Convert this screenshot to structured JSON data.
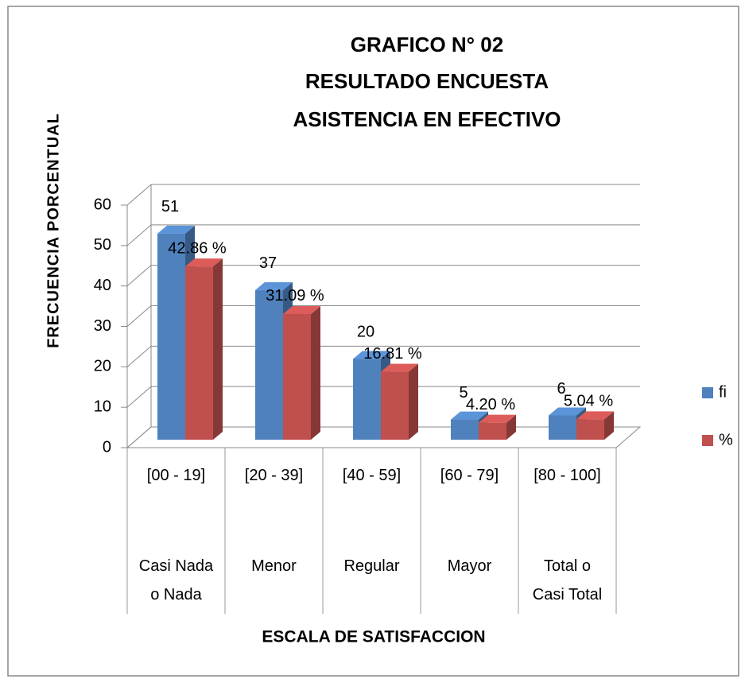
{
  "chart_data": {
    "type": "bar3d",
    "title": [
      "GRAFICO N° 02",
      "RESULTADO ENCUESTA",
      "ASISTENCIA EN EFECTIVO"
    ],
    "y_label": "FRECUENCIA PORCENTUAL",
    "x_label": "ESCALA DE SATISFACCION",
    "categories": [
      "[00 - 19]",
      "[20 - 39]",
      "[40 - 59]",
      "[60 - 79]",
      "[80 - 100]"
    ],
    "category_groups": [
      "Casi Nada o Nada",
      "Menor",
      "Regular",
      "Mayor",
      "Total o Casi Total"
    ],
    "series": [
      {
        "name": "fi",
        "color": "#4f81bd",
        "values": [
          51,
          37,
          20,
          5,
          6
        ]
      },
      {
        "name": "%",
        "color": "#c0504d",
        "values": [
          42.86,
          31.09,
          16.81,
          4.2,
          5.04
        ],
        "value_labels": [
          "42.86 %",
          "31.09 %",
          "16.81 %",
          "4.20 %",
          "5.04 %"
        ]
      }
    ],
    "ylim": [
      0,
      60
    ],
    "yticks": [
      0,
      10,
      20,
      30,
      40,
      50,
      60
    ],
    "grid": true,
    "legend": "right"
  }
}
